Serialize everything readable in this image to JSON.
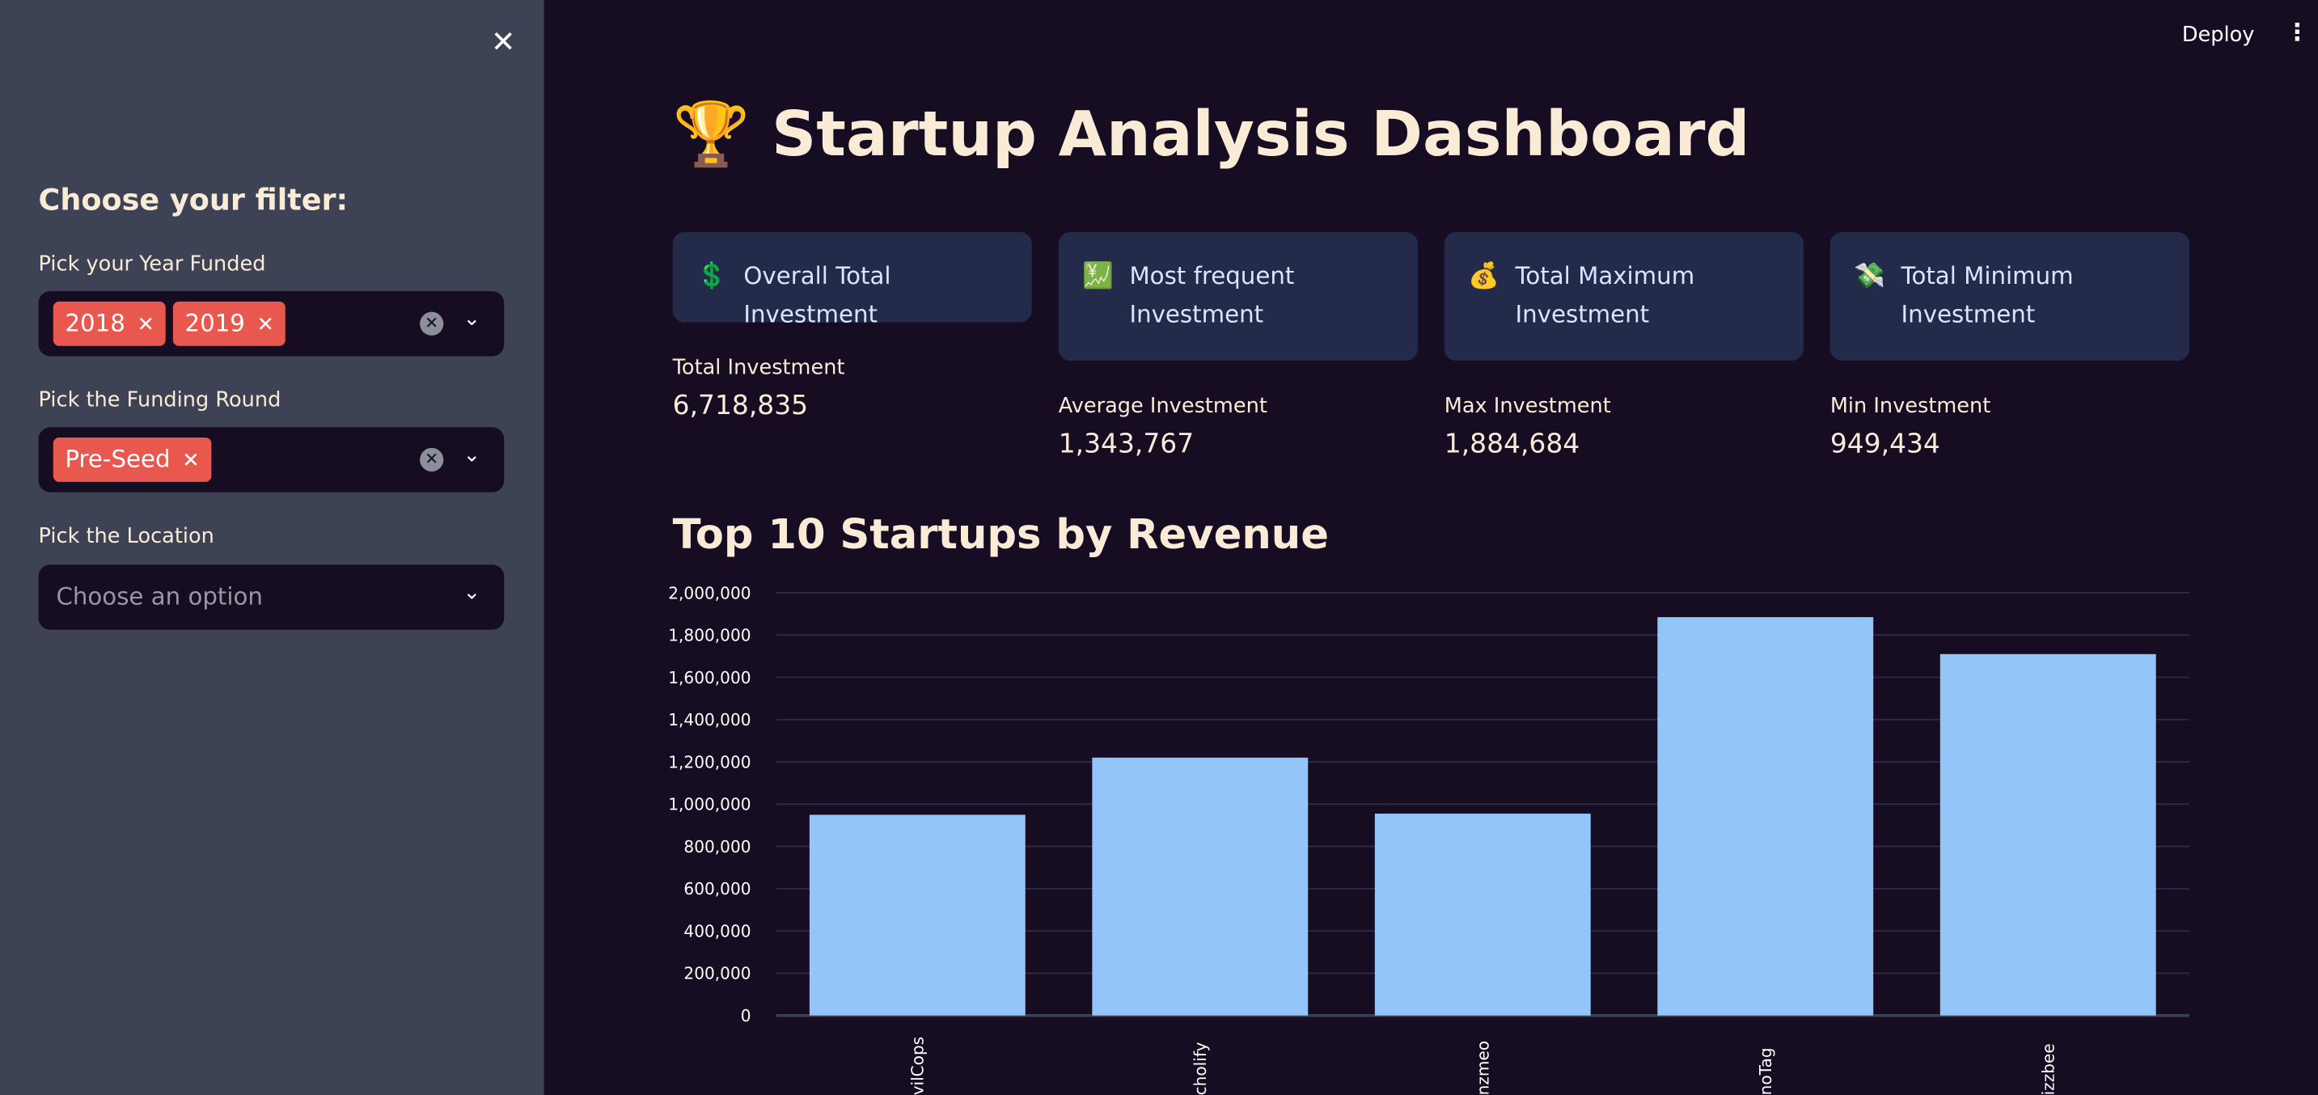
{
  "sidebar": {
    "title": "Choose your filter:",
    "year": {
      "label": "Pick your Year Funded",
      "tags": [
        "2018",
        "2019"
      ]
    },
    "round": {
      "label": "Pick the Funding Round",
      "tags": [
        "Pre-Seed"
      ]
    },
    "location": {
      "label": "Pick the Location",
      "placeholder": "Choose an option"
    }
  },
  "header": {
    "deploy": "Deploy",
    "menu": "⋮"
  },
  "page": {
    "title_icon": "🏆",
    "title": "Startup Analysis Dashboard"
  },
  "cards": [
    {
      "icon": "💲",
      "title": "Overall Total Investment",
      "label": "Total Investment",
      "value": "6,718,835"
    },
    {
      "icon": "💹",
      "title": "Most frequent Investment",
      "label": "Average Investment",
      "value": "1,343,767"
    },
    {
      "icon": "💰",
      "title": "Total Maximum Investment",
      "label": "Max Investment",
      "value": "1,884,684"
    },
    {
      "icon": "💸",
      "title": "Total Minimum Investment",
      "label": "Min Investment",
      "value": "949,434"
    }
  ],
  "chart_title": "Top 10 Startups by Revenue",
  "chart_data": {
    "type": "bar",
    "title": "Top 10 Startups by Revenue",
    "categories": [
      "vilCops",
      "cholify",
      "nzmeo",
      "noTag",
      "izzbee"
    ],
    "values": [
      949434,
      1220000,
      955000,
      1884684,
      1709717
    ],
    "ylim": [
      0,
      2000000
    ],
    "yticks": [
      0,
      200000,
      400000,
      600000,
      800000,
      1000000,
      1200000,
      1400000,
      1600000,
      1800000,
      2000000
    ],
    "ytick_labels": [
      "0",
      "200,000",
      "400,000",
      "600,000",
      "800,000",
      "1,000,000",
      "1,200,000",
      "1,400,000",
      "1,600,000",
      "1,800,000",
      "2,000,000"
    ],
    "grid": true,
    "bar_color": "#93c5f8"
  }
}
